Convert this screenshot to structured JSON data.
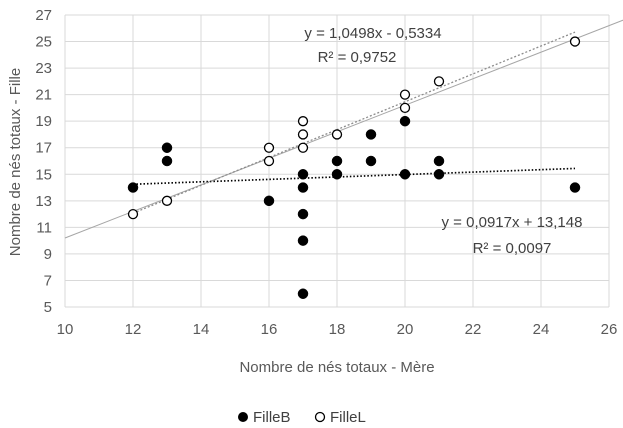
{
  "chart_data": {
    "type": "scatter",
    "xlabel": "Nombre de nés totaux - Mère",
    "ylabel": "Nombre de nés totaux - Fille",
    "xlim": [
      10,
      26
    ],
    "ylim": [
      5,
      27
    ],
    "xticks": [
      "10",
      "12",
      "14",
      "16",
      "18",
      "20",
      "22",
      "24",
      "26"
    ],
    "yticks": [
      "5",
      "7",
      "9",
      "11",
      "13",
      "15",
      "17",
      "19",
      "21",
      "23",
      "25",
      "27"
    ],
    "grid": true,
    "legend_position": "bottom",
    "series": [
      {
        "name": "FilleB",
        "marker": "filled-circle",
        "color": "#000000",
        "points": [
          [
            12,
            14
          ],
          [
            13,
            17
          ],
          [
            13,
            16
          ],
          [
            16,
            13
          ],
          [
            17,
            15
          ],
          [
            17,
            14
          ],
          [
            17,
            12
          ],
          [
            17,
            10
          ],
          [
            17,
            6
          ],
          [
            18,
            16
          ],
          [
            18,
            15
          ],
          [
            19,
            18
          ],
          [
            19,
            16
          ],
          [
            20,
            19
          ],
          [
            20,
            15
          ],
          [
            21,
            16
          ],
          [
            21,
            15
          ],
          [
            25,
            14
          ]
        ]
      },
      {
        "name": "FilleL",
        "marker": "open-circle",
        "color": "#000000",
        "points": [
          [
            12,
            12
          ],
          [
            13,
            13
          ],
          [
            16,
            17
          ],
          [
            16,
            16
          ],
          [
            17,
            19
          ],
          [
            17,
            18
          ],
          [
            17,
            17
          ],
          [
            18,
            18
          ],
          [
            20,
            21
          ],
          [
            20,
            20
          ],
          [
            21,
            22
          ],
          [
            25,
            25
          ]
        ]
      }
    ],
    "trendlines": [
      {
        "series": "FilleB",
        "style": "dotted",
        "slope": 0.0917,
        "intercept": 13.148,
        "x_range": [
          12,
          25
        ],
        "equation": "y = 0,0917x + 13,148",
        "r2": "R² = 0,0097"
      },
      {
        "series": "FilleL",
        "style": "dotted-gray",
        "slope": 1.0498,
        "intercept": -0.5334,
        "x_range": [
          12,
          25
        ],
        "equation": "y = 1,0498x - 0,5334",
        "r2": "R² = 0,9752"
      }
    ],
    "reference_line": {
      "style": "solid-gray",
      "slope": 1.0,
      "intercept": 0.2,
      "x_range": [
        10,
        26
      ]
    }
  }
}
